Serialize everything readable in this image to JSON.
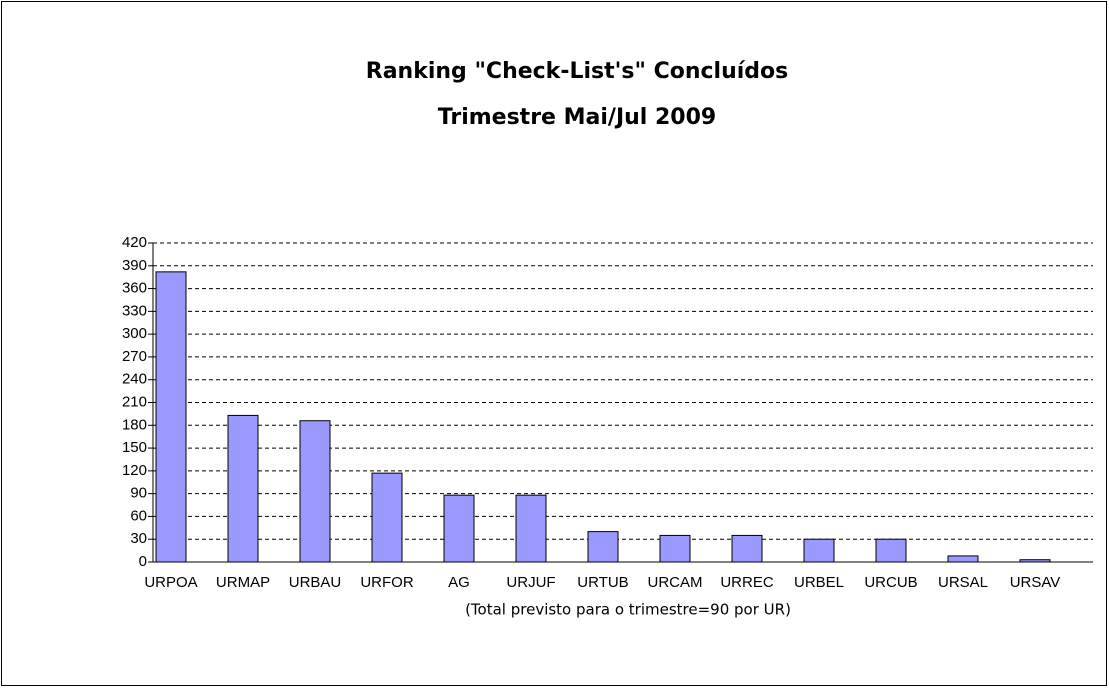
{
  "chart_data": {
    "type": "bar",
    "title": "Ranking \"Check-List's\" Concluídos",
    "subtitle": "Trimestre Mai/Jul 2009",
    "x_label": "(Total previsto para o trimestre=90 por UR)",
    "categories": [
      "URPOA",
      "URMAP",
      "URBAU",
      "URFOR",
      "AG",
      "URJUF",
      "URTUB",
      "URCAM",
      "URREC",
      "URBEL",
      "URCUB",
      "URSAL",
      "URSAV"
    ],
    "values": [
      382,
      193,
      186,
      117,
      88,
      88,
      40,
      35,
      35,
      30,
      30,
      8,
      3
    ],
    "color": "#9999ff",
    "ylim": [
      0,
      420
    ],
    "yticks": [
      0,
      30,
      60,
      90,
      120,
      150,
      180,
      210,
      240,
      270,
      300,
      330,
      360,
      390,
      420
    ],
    "grid": true
  }
}
